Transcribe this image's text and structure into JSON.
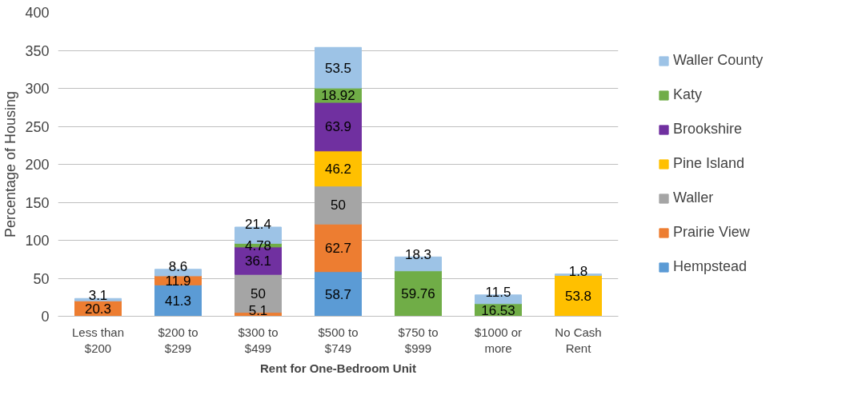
{
  "chart_data": {
    "type": "bar",
    "stacked": true,
    "xlabel": "Rent for One-Bedroom Unit",
    "ylabel": "Percentage of Housing",
    "categories": [
      "Less than $200",
      "$200 to $299",
      "$300 to $499",
      "$500 to $749",
      "$750 to $999",
      "$1000 or more",
      "No Cash Rent"
    ],
    "series": [
      {
        "name": "Hempstead",
        "color": "#5b9bd5",
        "values": [
          null,
          41.3,
          null,
          58.7,
          null,
          null,
          null
        ]
      },
      {
        "name": "Prairie View",
        "color": "#ed7d31",
        "values": [
          20.3,
          11.9,
          5.1,
          62.7,
          null,
          null,
          null
        ]
      },
      {
        "name": "Waller",
        "color": "#a5a5a5",
        "values": [
          null,
          null,
          50,
          50,
          null,
          null,
          null
        ]
      },
      {
        "name": "Pine Island",
        "color": "#ffc000",
        "values": [
          null,
          null,
          null,
          46.2,
          null,
          null,
          53.8
        ]
      },
      {
        "name": "Brookshire",
        "color": "#7030a0",
        "values": [
          null,
          null,
          36.1,
          63.9,
          null,
          null,
          null
        ]
      },
      {
        "name": "Katy",
        "color": "#70ad47",
        "values": [
          null,
          null,
          4.78,
          18.92,
          59.76,
          16.53,
          null
        ]
      },
      {
        "name": "Waller County",
        "color": "#9dc3e6",
        "values": [
          3.1,
          8.6,
          21.4,
          53.5,
          18.3,
          11.5,
          1.8
        ]
      }
    ],
    "ylim": [
      0,
      400
    ],
    "yticks": [
      0,
      50,
      100,
      150,
      200,
      250,
      300,
      350,
      400
    ],
    "grid": "y",
    "legend": "right",
    "data_labels": true
  }
}
